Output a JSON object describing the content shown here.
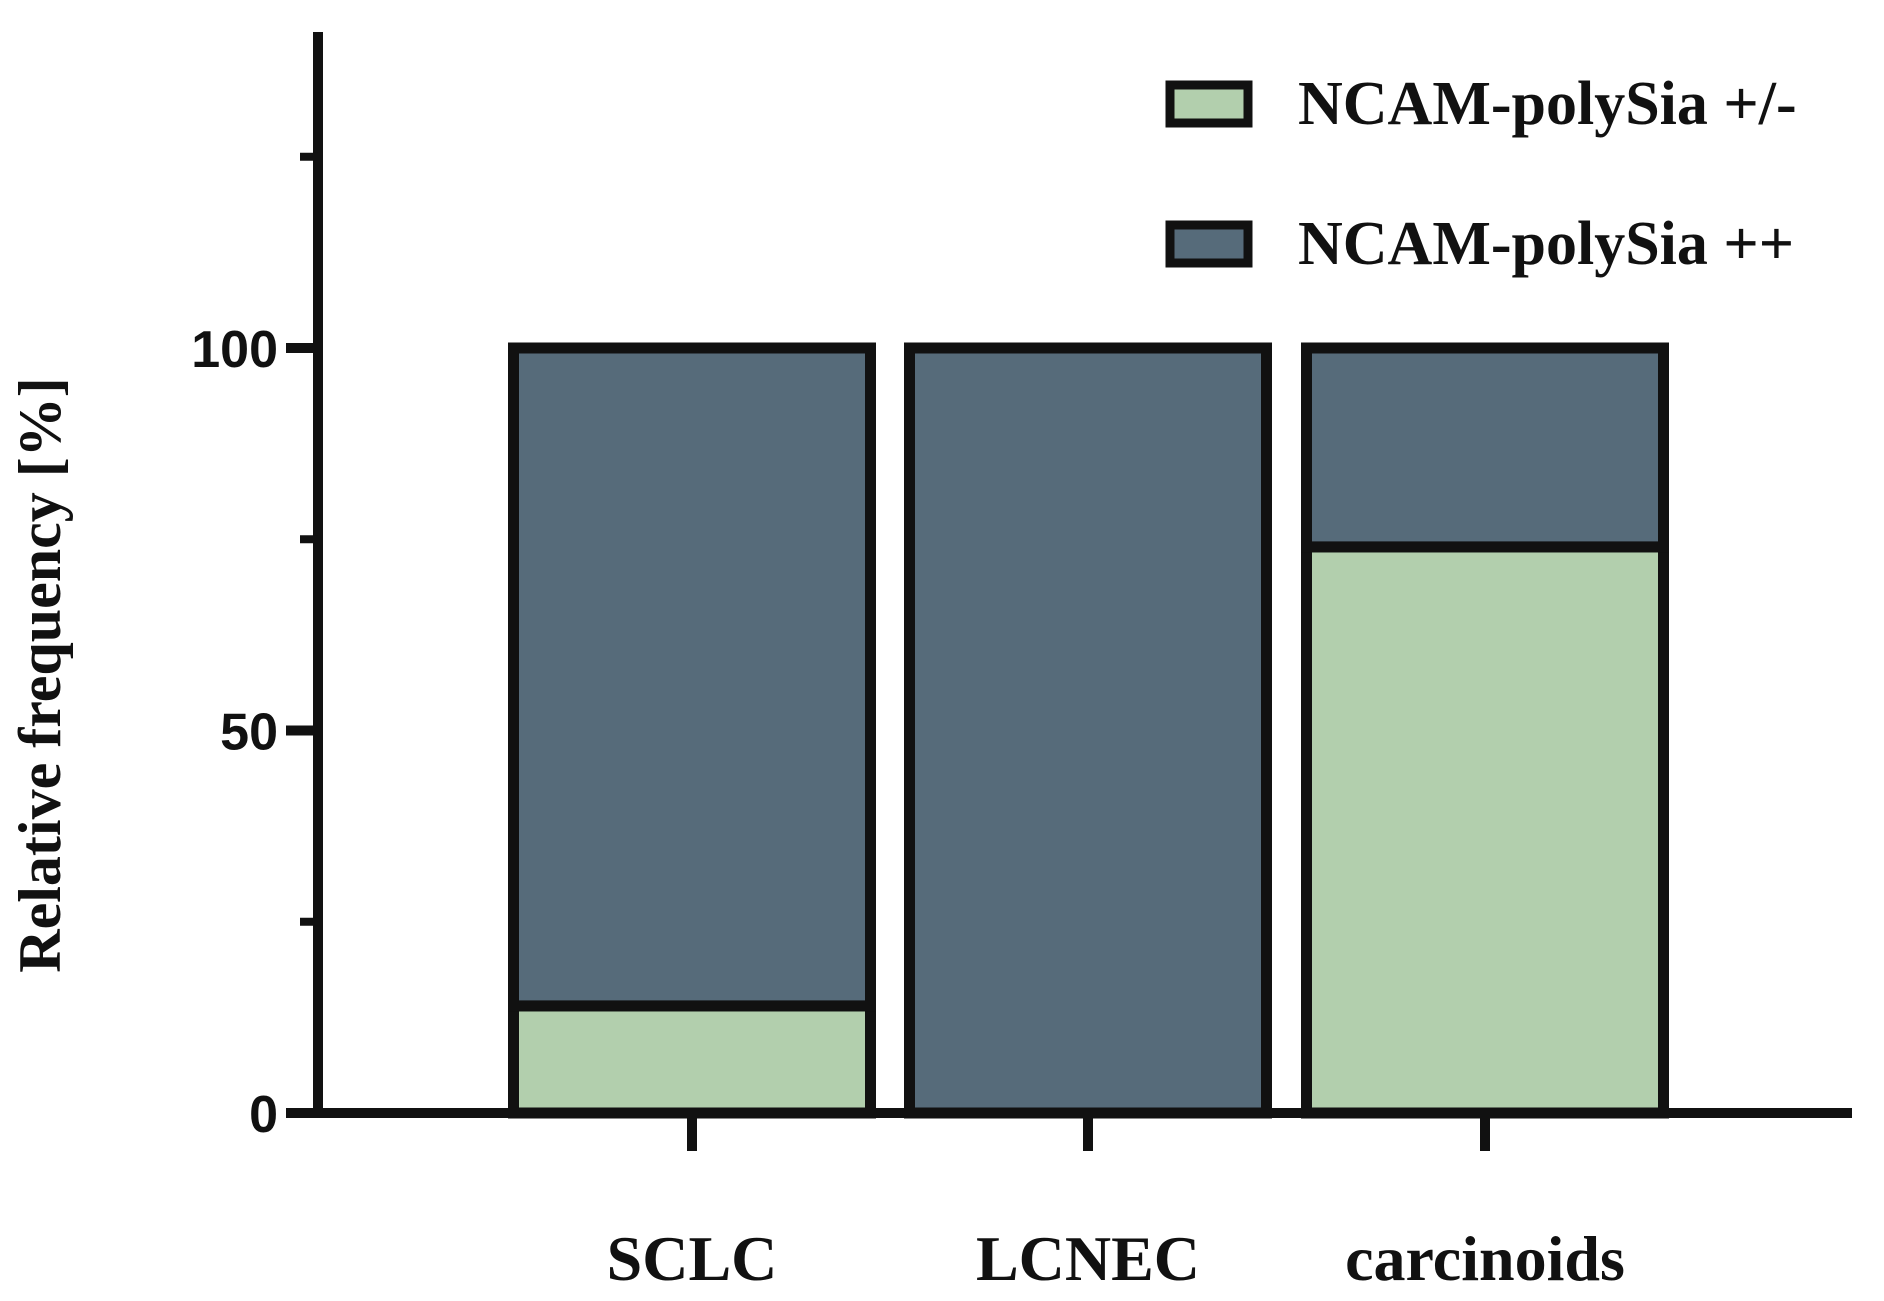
{
  "chart_data": {
    "type": "bar",
    "stacked": true,
    "title": "",
    "xlabel": "",
    "ylabel": "Relative frequency [%]",
    "ylim": [
      0,
      140
    ],
    "yticks_major": [
      0,
      50,
      100
    ],
    "yticks_minor": [
      25,
      75,
      125
    ],
    "categories": [
      "SCLC",
      "LCNEC",
      "carcinoids"
    ],
    "series": [
      {
        "name": "NCAM-polySia +/-",
        "color": "#b2cfad",
        "values": [
          14,
          0,
          74
        ]
      },
      {
        "name": "NCAM-polySia ++",
        "color": "#566b7a",
        "values": [
          86,
          100,
          26
        ]
      }
    ],
    "legend_position": "top-right"
  }
}
